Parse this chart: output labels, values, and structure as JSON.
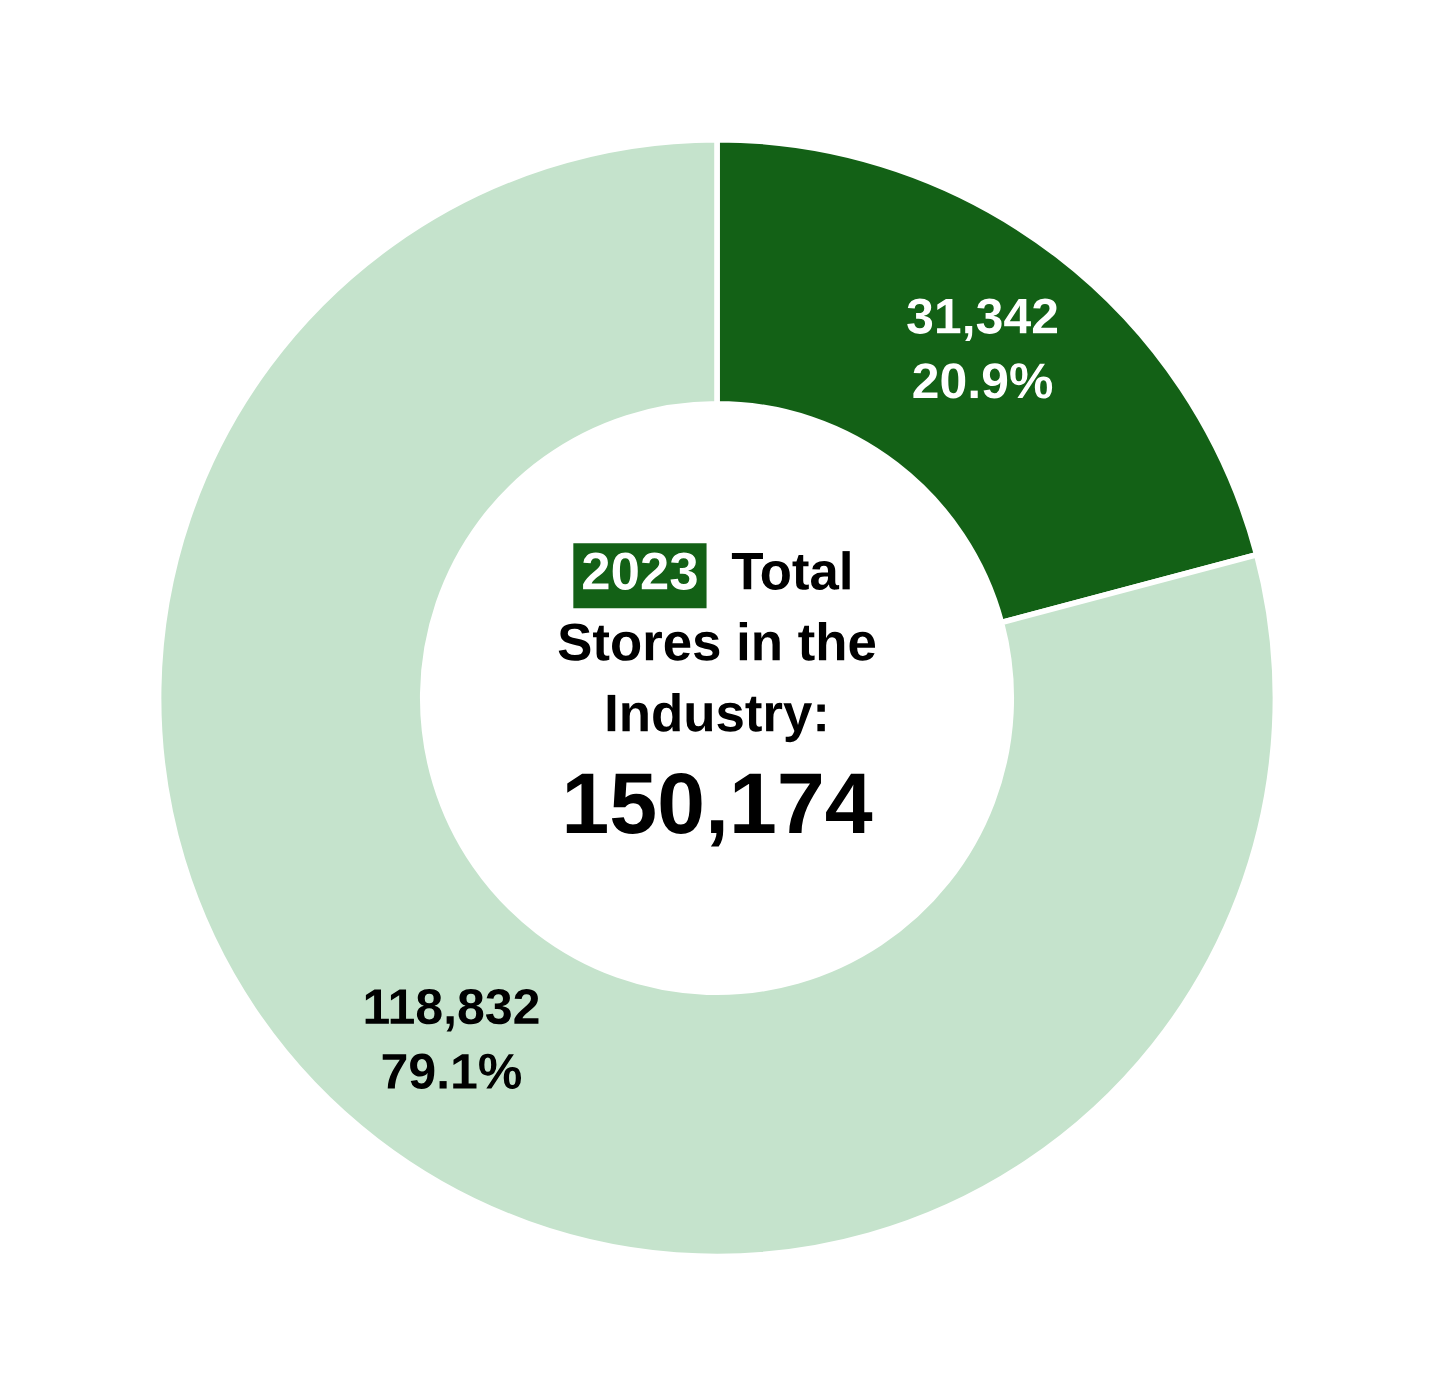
{
  "chart_data": {
    "type": "donut",
    "categories": [
      null,
      null
    ],
    "values": [
      31342,
      118832
    ],
    "colors": [
      "#136116",
      "#c5e3cc"
    ],
    "value_labels": [
      "31,342\n20.9%",
      "118,832\n79.1%"
    ],
    "annotations": [
      "2023",
      "Total",
      "Stores in the",
      "Industry:",
      "150,174"
    ],
    "legend": false
  }
}
